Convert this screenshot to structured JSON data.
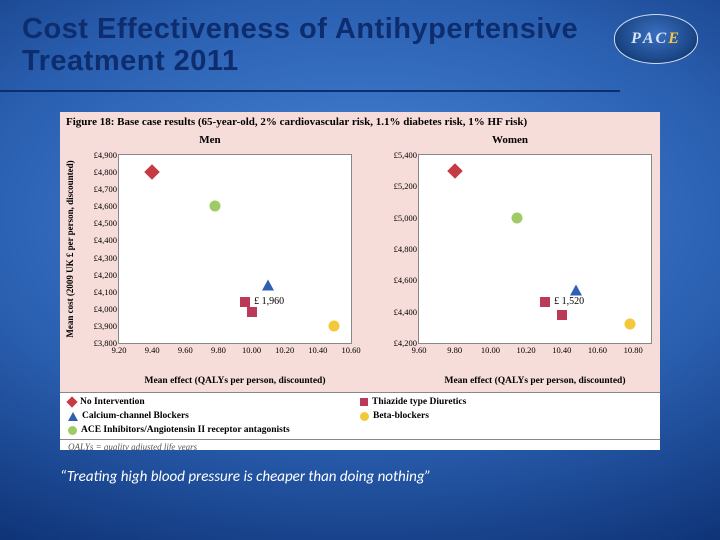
{
  "slide": {
    "title": "Cost Effectiveness of Antihypertensive Treatment 2011",
    "quote": "“Treating high blood pressure is cheaper than doing nothing”",
    "logo_text": {
      "p": "P",
      "a": "A",
      "c": "C",
      "e": "E"
    },
    "title_color": "#0d2d6e",
    "background_gradient": [
      "#4a87d8",
      "#2a5fb0",
      "#0f3478",
      "#061d45"
    ]
  },
  "figure": {
    "caption": "Figure 18: Base case results (65-year-old, 2% cardiovascular risk, 1.1% diabetes risk, 1% HF risk)",
    "header_bg": "#f6ddd9",
    "panel_bg": "#f6ddd9",
    "plot_bg": "#ffffff",
    "ylabel": "Mean cost (2009 UK £ per person, discounted)",
    "xlabel": "Mean effect (QALYs per person, discounted)",
    "footnote": "QALYs = quality adjusted life years",
    "markers": {
      "no_intervention": {
        "shape": "diamond",
        "color": "#c53a43"
      },
      "thiazide": {
        "shape": "square",
        "color": "#bb3a58"
      },
      "ccb": {
        "shape": "triangle",
        "color": "#2f5fb0"
      },
      "beta": {
        "shape": "circle",
        "color": "#f4c838"
      },
      "acei": {
        "shape": "circle",
        "color": "#9ecb66"
      }
    },
    "legend": [
      {
        "marker": "no_intervention",
        "label": "No Intervention"
      },
      {
        "marker": "thiazide",
        "label": "Thiazide type Diuretics"
      },
      {
        "marker": "ccb",
        "label": "Calcium-channel Blockers"
      },
      {
        "marker": "beta",
        "label": "Beta-blockers"
      },
      {
        "marker": "acei",
        "label": "ACE Inhibitors/Angiotensin II receptor antagonists"
      }
    ],
    "panels": [
      {
        "title": "Men",
        "xlim": [
          9.2,
          10.6
        ],
        "xtick_step": 0.2,
        "ylim": [
          3800,
          4900
        ],
        "ytick_step": 100,
        "y_prefix": "£",
        "callout": "£ 1,960",
        "points": [
          {
            "series": "no_intervention",
            "x": 9.4,
            "y": 4800
          },
          {
            "series": "acei",
            "x": 9.78,
            "y": 4600
          },
          {
            "series": "ccb",
            "x": 10.1,
            "y": 4140
          },
          {
            "series": "thiazide",
            "x": 10.0,
            "y": 3980
          },
          {
            "series": "beta",
            "x": 10.5,
            "y": 3900
          }
        ]
      },
      {
        "title": "Women",
        "xlim": [
          9.6,
          10.9
        ],
        "xtick_step": 0.2,
        "ylim": [
          4200,
          5400
        ],
        "ytick_step": 200,
        "y_prefix": "£",
        "callout": "£ 1,520",
        "points": [
          {
            "series": "no_intervention",
            "x": 9.8,
            "y": 5300
          },
          {
            "series": "acei",
            "x": 10.15,
            "y": 5000
          },
          {
            "series": "ccb",
            "x": 10.48,
            "y": 4540
          },
          {
            "series": "thiazide",
            "x": 10.4,
            "y": 4380
          },
          {
            "series": "beta",
            "x": 10.78,
            "y": 4320
          }
        ]
      }
    ]
  }
}
